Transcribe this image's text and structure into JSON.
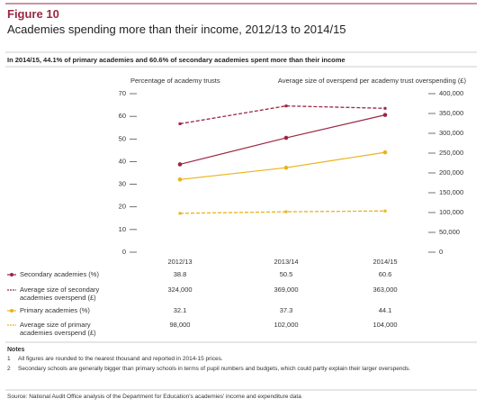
{
  "figure_label": "Figure 10",
  "subtitle": "Academies spending more than their income, 2012/13 to 2014/15",
  "headline": "In 2014/15, 44.1% of primary academies and 60.6% of secondary academies spent more than their income",
  "chart_data": {
    "type": "line",
    "y_label": "Percentage of academy trusts",
    "y2_label": "Average size of overspend per academy trust overspending (£)",
    "categories": [
      "2012/13",
      "2013/14",
      "2014/15"
    ],
    "ylim": [
      0,
      70
    ],
    "yticks": [
      0,
      10,
      20,
      30,
      40,
      50,
      60,
      70
    ],
    "y2lim": [
      0,
      400000
    ],
    "y2ticks": [
      0,
      {
        "value": 50000,
        "label": "50,000"
      },
      {
        "value": 100000,
        "label": "100,000"
      },
      {
        "value": 150000,
        "label": "150,000"
      },
      {
        "value": 200000,
        "label": "200,000"
      },
      {
        "value": 250000,
        "label": "250,000"
      },
      {
        "value": 300000,
        "label": "300,000"
      },
      {
        "value": 350000,
        "label": "350,000"
      },
      {
        "value": 400000,
        "label": "400,000"
      }
    ],
    "series": [
      {
        "name": "Secondary academies (%)",
        "color": "#9b2743",
        "values": [
          38.8,
          50.5,
          60.6
        ]
      },
      {
        "name": "Average size of secondary academies overspend (£)",
        "color": "#9b2743",
        "dashed": true,
        "axis": "y2",
        "values": [
          324000,
          369000,
          363000
        ],
        "value_labels": [
          "324,000",
          "369,000",
          "363,000"
        ]
      },
      {
        "name": "Primary academies (%)",
        "color": "#e8b419",
        "values": [
          32.1,
          37.3,
          44.1
        ]
      },
      {
        "name": "Average size of primary academies overspend (£)",
        "color": "#e8b419",
        "dashed": true,
        "axis": "y2",
        "values": [
          98000,
          102000,
          104000
        ],
        "value_labels": [
          "98,000",
          "102,000",
          "104,000"
        ]
      }
    ]
  },
  "notes": {
    "title": "Notes",
    "items": [
      {
        "number": "1",
        "text": "All figures are rounded to the nearest thousand and reported in 2014-15 prices."
      },
      {
        "number": "2",
        "text": "Secondary schools are generally bigger than primary schools in terms of pupil numbers and budgets, which could partly explain their larger overspends."
      }
    ],
    "source": "Source: National Audit Office analysis of the Department for Education's academies' income and expenditure data"
  }
}
